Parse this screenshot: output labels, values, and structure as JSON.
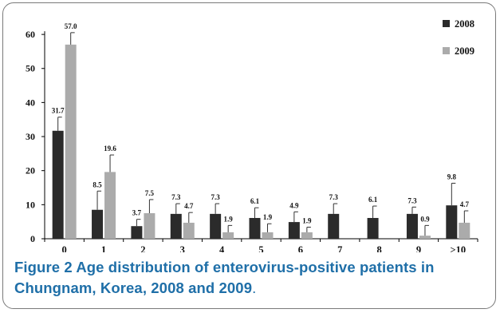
{
  "chart_data": {
    "type": "bar",
    "categories": [
      "0",
      "1",
      "2",
      "3",
      "4",
      "5",
      "6",
      "7",
      "8",
      "9",
      ">10"
    ],
    "series": [
      {
        "name": "2008",
        "color": "#2b2b2b",
        "values": [
          31.7,
          8.5,
          3.7,
          7.3,
          7.3,
          6.1,
          4.9,
          7.3,
          6.1,
          7.3,
          9.8
        ],
        "errors": [
          4,
          5.5,
          2,
          3,
          3,
          3,
          3,
          3,
          3.5,
          2,
          6.5
        ],
        "labels": [
          "31.7",
          "8.5",
          "3.7",
          "7.3",
          "7.3",
          "6.1",
          "4.9",
          "7.3",
          "6.1",
          "7.3",
          "9.8"
        ]
      },
      {
        "name": "2009",
        "color": "#ababab",
        "values": [
          57.0,
          19.6,
          7.5,
          4.7,
          1.9,
          1.9,
          1.9,
          null,
          null,
          0.9,
          4.7
        ],
        "errors": [
          3.5,
          5,
          4,
          3,
          2,
          2.5,
          1.5,
          null,
          null,
          3,
          3.5
        ],
        "labels": [
          "57.0",
          "19.6",
          "7.5",
          "4.7",
          "1.9",
          "1.9",
          "1.9",
          "",
          "",
          "0.9",
          "4.7"
        ]
      }
    ],
    "yticks": [
      0,
      10,
      20,
      30,
      40,
      50,
      60
    ],
    "ylim": [
      0,
      64
    ],
    "legend_position": "top-right",
    "grid": false
  },
  "caption": {
    "label": "Figure 2",
    "title": " Age distribution of enterovirus-positive patients in Chungnam, Korea, 2008 and 2009",
    "period": "."
  }
}
